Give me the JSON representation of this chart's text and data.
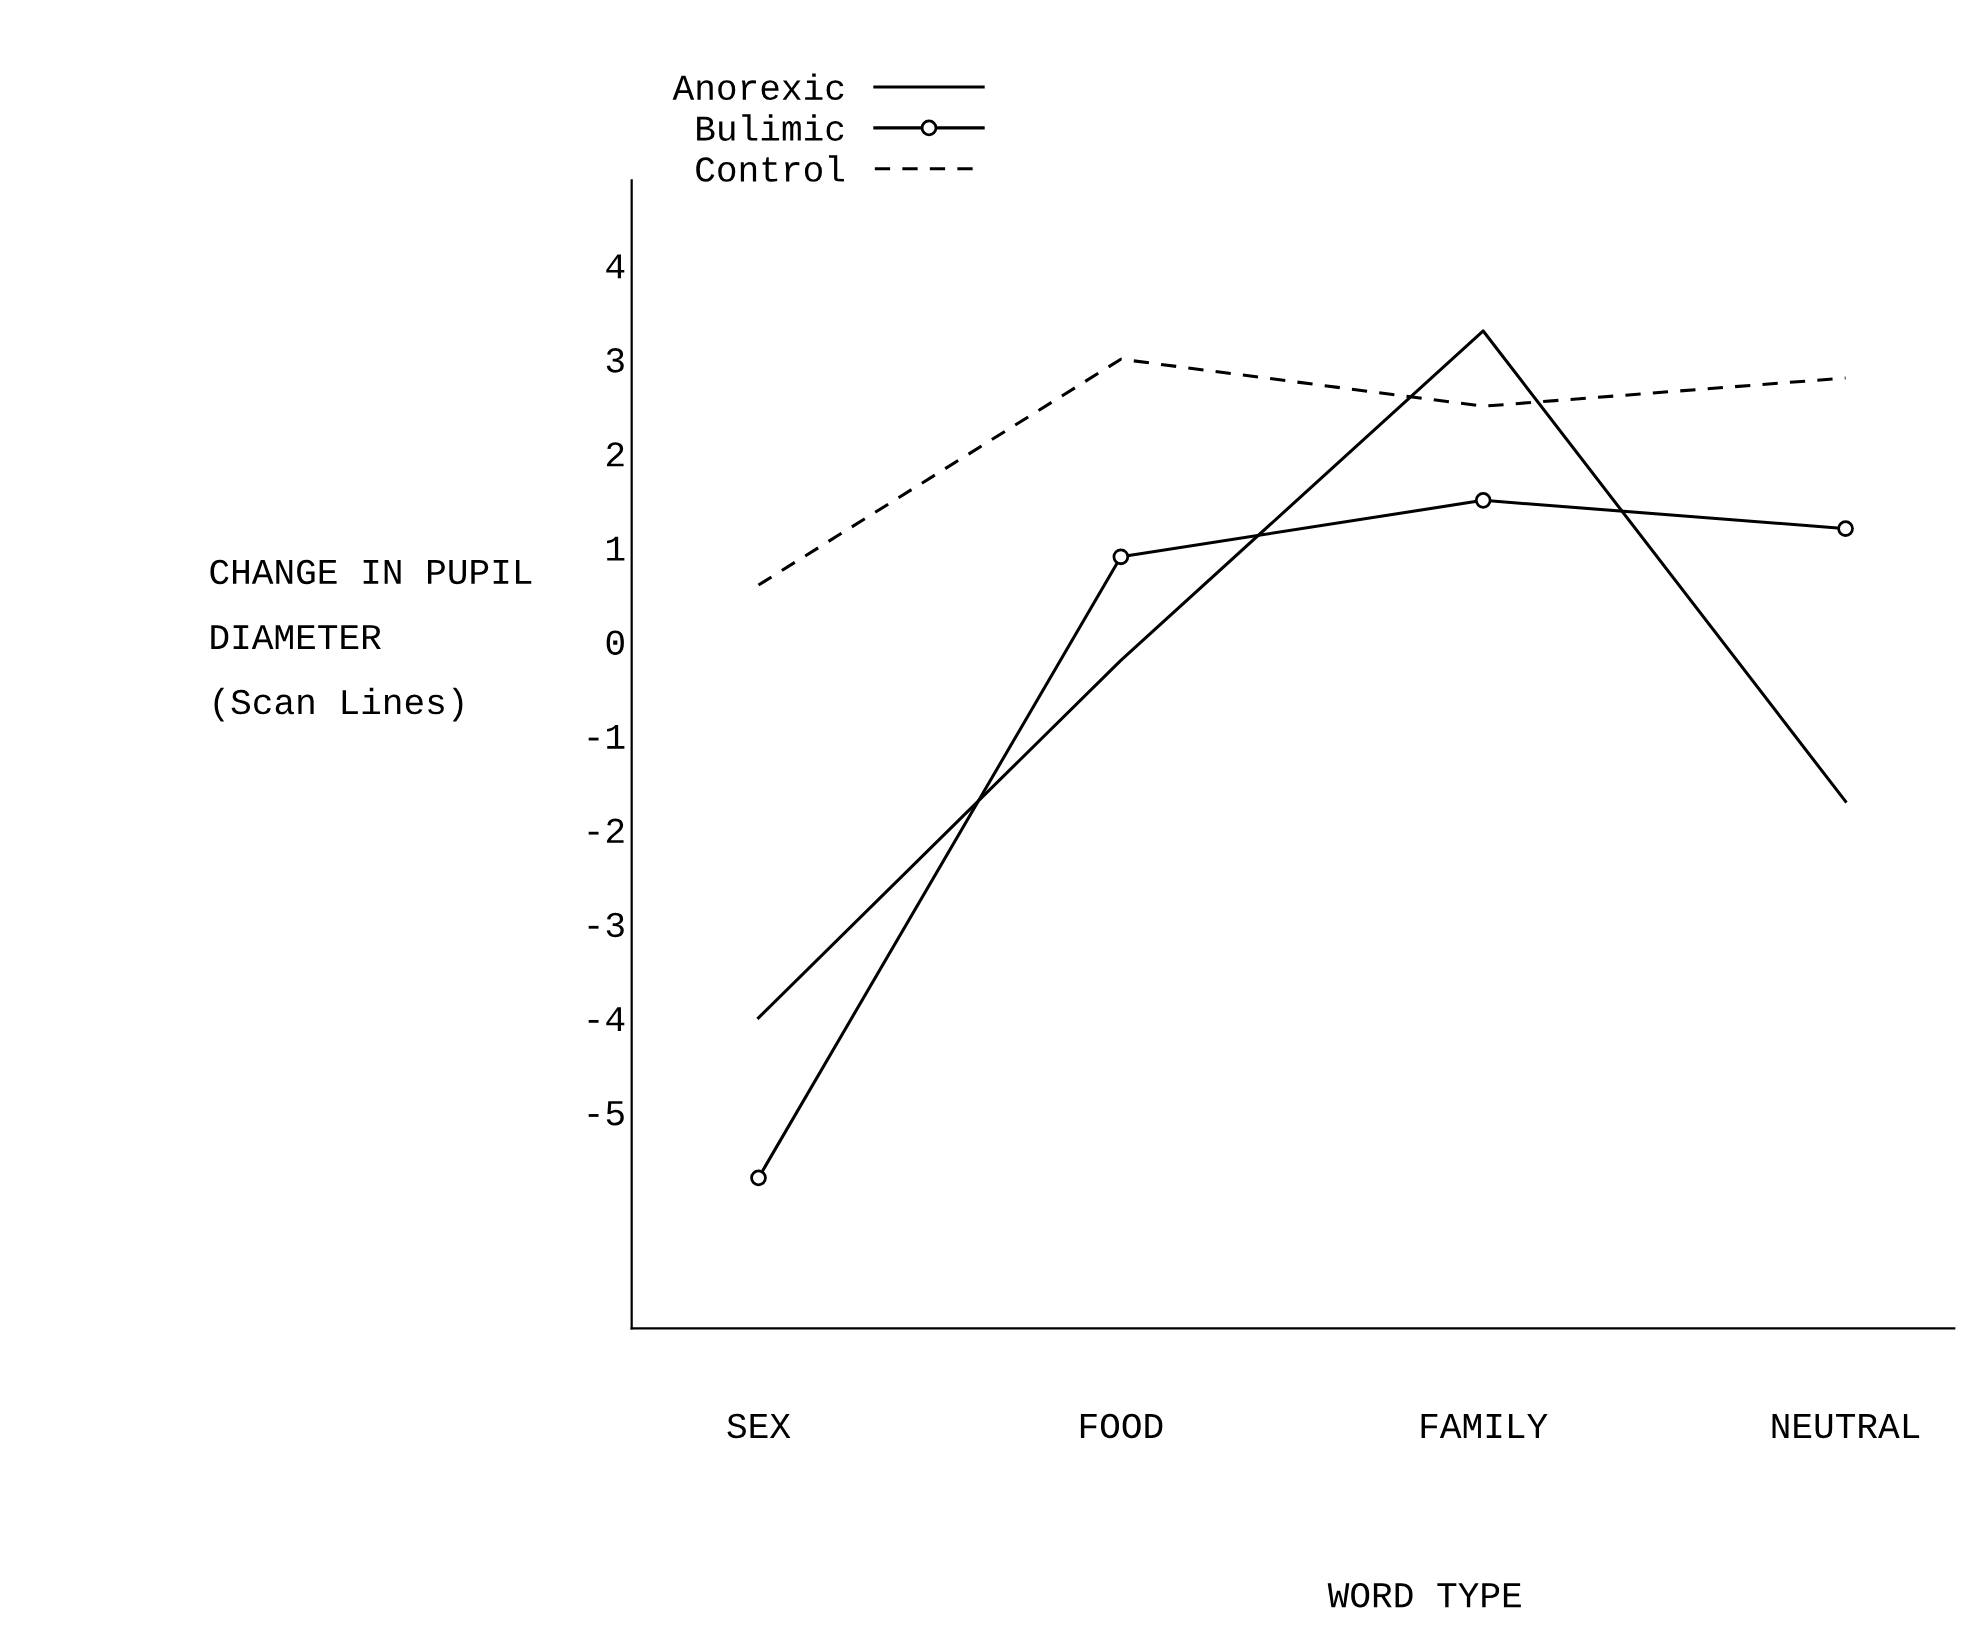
{
  "chart_data": {
    "type": "line",
    "ylabel": "CHANGE IN PUPIL\nDIAMETER\n(Scan Lines)",
    "xlabel": "WORD TYPE",
    "categories": [
      "SEX",
      "FOOD",
      "FAMILY",
      "NEUTRAL"
    ],
    "series": [
      {
        "name": "Anorexic",
        "color": "#000000",
        "values": [
          -4.0,
          -0.2,
          3.3,
          -1.7
        ],
        "marker": "none",
        "line_style": "solid"
      },
      {
        "name": "Bulimic",
        "color": "#000000",
        "values": [
          -5.7,
          0.9,
          1.5,
          1.2
        ],
        "marker": "circle",
        "line_style": "solid"
      },
      {
        "name": "Control",
        "color": "#000000",
        "values": [
          0.6,
          3.0,
          2.5,
          2.8
        ],
        "marker": "none",
        "line_style": "dashed"
      }
    ],
    "ylim": [
      -7.3,
      4.9
    ],
    "yticks": [
      -5,
      -4,
      -3,
      -2,
      -1,
      0,
      1,
      2,
      3,
      4
    ],
    "grid": false,
    "legend": "top left"
  }
}
